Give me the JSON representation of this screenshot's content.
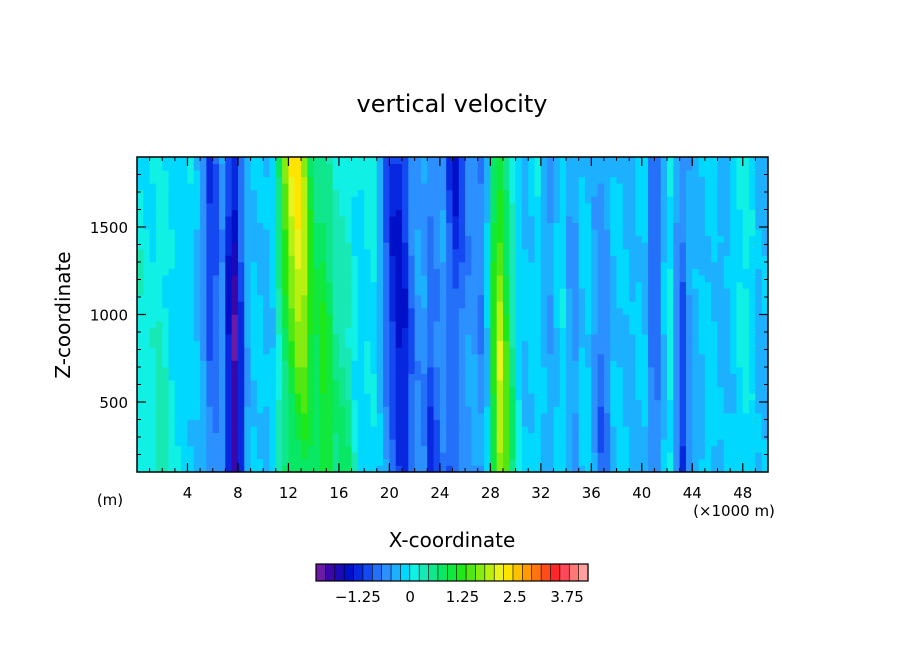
{
  "chart_data": {
    "type": "heatmap",
    "title": "vertical velocity",
    "xlabel": "X-coordinate",
    "ylabel": "Z-coordinate",
    "x_unit": "(×1000 m)",
    "y_unit": "(m)",
    "xlim": [
      0,
      50
    ],
    "ylim": [
      100,
      1900
    ],
    "x_ticks": [
      4,
      8,
      12,
      16,
      20,
      24,
      28,
      32,
      36,
      40,
      44,
      48
    ],
    "y_ticks": [
      500,
      1000,
      1500
    ],
    "grid": false,
    "colorbar": {
      "min": -2.25,
      "max": 4.25,
      "step": 0.25,
      "tick_values": [
        -1.25,
        0,
        1.25,
        2.5,
        3.75
      ],
      "tick_labels": [
        "−1.25",
        "0",
        "1.25",
        "2.5",
        "3.75"
      ],
      "colors": [
        "#6a1aa6",
        "#3a08a8",
        "#1a0ab8",
        "#0010c8",
        "#0828e0",
        "#1448f0",
        "#2470f8",
        "#2c90ff",
        "#1cb0ff",
        "#00d8ff",
        "#10f0e4",
        "#18e8b4",
        "#10e68c",
        "#08e864",
        "#10e83c",
        "#20e818",
        "#50e810",
        "#86ec10",
        "#b8f010",
        "#eaf41c",
        "#ffe400",
        "#ffc000",
        "#ff9a00",
        "#ff7410",
        "#ff4c18",
        "#ff2828",
        "#ff4858",
        "#ff7878",
        "#ffa0a0"
      ]
    },
    "columns": {
      "x": [
        0,
        0.5,
        1,
        1.5,
        2,
        2.5,
        3,
        3.5,
        4,
        4.5,
        5,
        5.5,
        6,
        6.5,
        7,
        7.5,
        8,
        8.5,
        9,
        9.5,
        10,
        10.5,
        11,
        11.5,
        12,
        12.5,
        13,
        13.5,
        14,
        14.5,
        15,
        15.5,
        16,
        16.5,
        17,
        17.5,
        18,
        18.5,
        19,
        19.5,
        20,
        20.5,
        21,
        21.5,
        22,
        22.5,
        23,
        23.5,
        24,
        24.5,
        25,
        25.5,
        26,
        26.5,
        27,
        27.5,
        28,
        28.5,
        29,
        29.5,
        30,
        30.5,
        31,
        31.5,
        32,
        32.5,
        33,
        33.5,
        34,
        34.5,
        35,
        35.5,
        36,
        36.5,
        37,
        37.5,
        38,
        38.5,
        39,
        39.5,
        40,
        40.5,
        41,
        41.5,
        42,
        42.5,
        43,
        43.5,
        44,
        44.5,
        45,
        45.5,
        46,
        46.5,
        47,
        47.5,
        48,
        48.5,
        49,
        49.5,
        50
      ],
      "w": [
        0.35,
        0.45,
        0.3,
        0.5,
        0.65,
        0.45,
        0.3,
        0.1,
        0.3,
        0.05,
        -0.15,
        -0.55,
        -1.1,
        -0.35,
        -0.4,
        -1.85,
        -1.7,
        -0.45,
        0.05,
        0.1,
        0.05,
        -0.25,
        0.6,
        1.7,
        2.2,
        2.5,
        2.35,
        1.85,
        1.0,
        1.2,
        1.55,
        1.05,
        0.75,
        1.15,
        0.8,
        0.3,
        0.25,
        0.55,
        0.25,
        -0.5,
        -0.85,
        -1.2,
        -1.25,
        -0.85,
        -0.45,
        -0.3,
        -0.6,
        -1.4,
        -0.4,
        -0.8,
        -1.6,
        -1.2,
        -0.5,
        -0.35,
        -0.3,
        -0.55,
        0.6,
        2.3,
        2.0,
        1.35,
        0.45,
        0.05,
        -0.05,
        0.3,
        0.15,
        -0.45,
        -0.2,
        0.25,
        0.1,
        -0.5,
        -0.1,
        0.2,
        -0.05,
        -0.5,
        -0.75,
        -0.25,
        0.15,
        0.05,
        -0.2,
        -0.1,
        0.25,
        -0.25,
        -0.95,
        -0.2,
        0.15,
        0.45,
        -1.15,
        -0.55,
        -0.15,
        -0.2,
        0.15,
        0.15,
        0.05,
        -0.3,
        0.1,
        0.15,
        0.35,
        0.25,
        0.05,
        -0.2,
        0.1
      ]
    }
  }
}
